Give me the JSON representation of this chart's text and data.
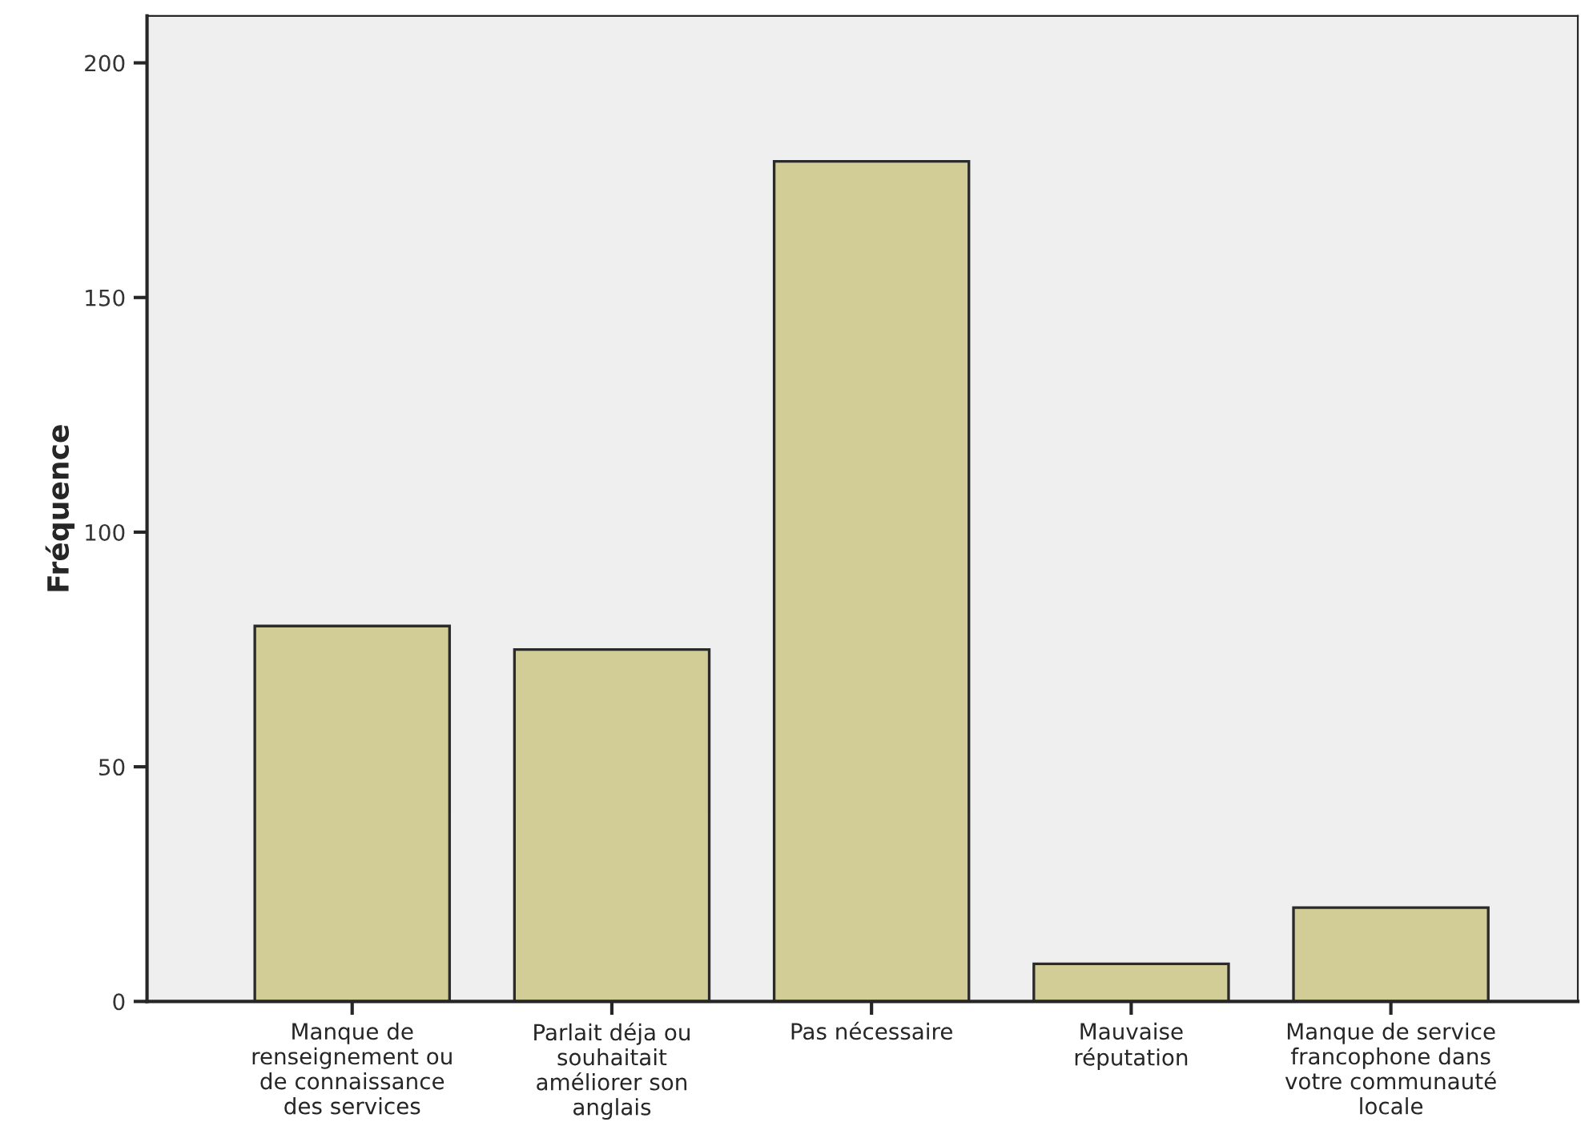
{
  "chart_data": {
    "type": "bar",
    "ylabel": "Fréquence",
    "categories": [
      "Manque de\nrenseignement ou\nde connaissance\ndes services",
      "Parlait déja ou\nsouhaitait\naméliorer son\nanglais",
      "Pas nécessaire",
      "Mauvaise\nréputation",
      "Manque de service\nfrancophone dans\nvotre communauté\nlocale"
    ],
    "values": [
      80,
      75,
      179,
      8,
      20
    ],
    "color": "#d2cd96",
    "ylim": [
      0,
      210
    ],
    "yticks": [
      0,
      50,
      100,
      150,
      200
    ],
    "grid": false
  }
}
